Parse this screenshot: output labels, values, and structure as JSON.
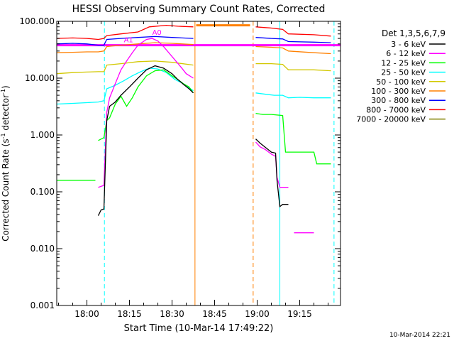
{
  "chart_data": {
    "type": "line",
    "title": "HESSI Observing Summary Count Rates, Corrected",
    "xlabel": "Start Time (10-Mar-14 17:49:22)",
    "ylabel": "Corrected Count Rate (s⁻¹ detector⁻¹)",
    "ylabel_main": "Corrected Count Rate (s",
    "ylabel_sup1": "-1",
    "ylabel_mid": " detector",
    "ylabel_sup2": "-1",
    "ylabel_end": ")",
    "yscale": "log",
    "xlim": [
      "17:49:22",
      "19:29:22"
    ],
    "ylim": [
      0.001,
      100
    ],
    "x_ticks": [
      "18:00",
      "18:15",
      "18:30",
      "18:45",
      "19:00",
      "19:15"
    ],
    "y_ticks": [
      "0.001",
      "0.010",
      "0.100",
      "1.000",
      "10.000",
      "100.000"
    ],
    "legend_title": "Det 1,3,5,6,7,9",
    "legend_placement": "right-outside",
    "footer_timestamp": "10-Mar-2014 22:21",
    "annotations": [
      {
        "text": "A1",
        "time": "18:14:40",
        "value": 43
      },
      {
        "text": "A0",
        "time": "18:24:40",
        "value": 58
      }
    ],
    "vertical_lines": [
      {
        "time": "17:49:22",
        "color": "#00ffff",
        "style": "dashed"
      },
      {
        "time": "18:06:10",
        "color": "#00ffff",
        "style": "dashed"
      },
      {
        "time": "18:38:05",
        "color": "#ff8000",
        "style": "solid"
      },
      {
        "time": "18:58:35",
        "color": "#ff8000",
        "style": "dashed"
      },
      {
        "time": "19:08:00",
        "color": "#00ffff",
        "style": "solid"
      },
      {
        "time": "19:27:05",
        "color": "#00ffff",
        "style": "dashed"
      }
    ],
    "horizontal_lines": [
      {
        "value": 38,
        "color": "#ff00ff",
        "from": "17:49:22",
        "to": "19:29:22"
      },
      {
        "value": 85,
        "color": "#ff8000",
        "from": "18:38:30",
        "to": "18:57:30"
      }
    ],
    "series": [
      {
        "name": "3 - 6 keV",
        "color": "#000000",
        "points": [
          [
            "18:04:00",
            0.038
          ],
          [
            "18:05:00",
            0.048
          ],
          [
            "18:06:00",
            0.05
          ],
          [
            "18:07:00",
            1.8
          ],
          [
            "18:08:00",
            3.2
          ],
          [
            "18:10:00",
            3.8
          ],
          [
            "18:12:00",
            5.0
          ],
          [
            "18:15:00",
            7.0
          ],
          [
            "18:18:00",
            10.0
          ],
          [
            "18:21:00",
            14.0
          ],
          [
            "18:24:00",
            16.5
          ],
          [
            "18:27:00",
            15.0
          ],
          [
            "18:30:00",
            12.0
          ],
          [
            "18:32:00",
            9.5
          ],
          [
            "18:34:00",
            7.8
          ],
          [
            "18:36:00",
            6.5
          ],
          [
            "18:37:30",
            5.5
          ],
          null,
          [
            "18:59:30",
            0.85
          ],
          [
            "19:01:00",
            0.72
          ],
          [
            "19:03:00",
            0.6
          ],
          [
            "19:05:00",
            0.5
          ],
          [
            "19:06:30",
            0.48
          ],
          [
            "19:07:00",
            0.16
          ],
          [
            "19:08:00",
            0.055
          ],
          [
            "19:09:00",
            0.06
          ],
          [
            "19:11:00",
            0.06
          ]
        ]
      },
      {
        "name": "6 - 12 keV",
        "color": "#ff00ff",
        "points": [
          [
            "18:04:00",
            0.12
          ],
          [
            "18:06:00",
            0.13
          ],
          [
            "18:07:00",
            2.5
          ],
          [
            "18:08:00",
            4.5
          ],
          [
            "18:10:00",
            8.0
          ],
          [
            "18:12:00",
            14.0
          ],
          [
            "18:14:00",
            20.0
          ],
          [
            "18:16:00",
            28.0
          ],
          [
            "18:18:00",
            38.0
          ],
          [
            "18:21:00",
            48.0
          ],
          [
            "18:23:00",
            50.0
          ],
          [
            "18:25:00",
            45.0
          ],
          [
            "18:27:00",
            36.0
          ],
          [
            "18:30:00",
            24.0
          ],
          [
            "18:33:00",
            16.0
          ],
          [
            "18:35:00",
            12.0
          ],
          [
            "18:37:30",
            10.0
          ],
          null,
          [
            "18:59:30",
            0.75
          ],
          [
            "19:01:00",
            0.62
          ],
          [
            "19:03:00",
            0.55
          ],
          [
            "19:05:00",
            0.46
          ],
          [
            "19:06:30",
            0.42
          ],
          [
            "19:07:00",
            0.18
          ],
          [
            "19:08:00",
            0.12
          ],
          [
            "19:11:00",
            0.12
          ],
          null,
          [
            "19:13:00",
            0.019
          ],
          [
            "19:20:00",
            0.019
          ]
        ]
      },
      {
        "name": "12 - 25 keV",
        "color": "#00ff00",
        "points": [
          [
            "17:49:22",
            0.16
          ],
          [
            "17:50:00",
            0.16
          ],
          [
            "18:03:00",
            0.16
          ],
          null,
          [
            "18:04:00",
            0.8
          ],
          [
            "18:06:00",
            0.9
          ],
          [
            "18:07:00",
            1.8
          ],
          [
            "18:08:00",
            2.0
          ],
          [
            "18:10:00",
            3.5
          ],
          [
            "18:12:00",
            4.8
          ],
          [
            "18:14:00",
            3.2
          ],
          [
            "18:16:00",
            4.5
          ],
          [
            "18:18:00",
            7.0
          ],
          [
            "18:21:00",
            11.0
          ],
          [
            "18:24:00",
            13.5
          ],
          [
            "18:27:00",
            14.0
          ],
          [
            "18:30:00",
            11.0
          ],
          [
            "18:32:00",
            9.5
          ],
          [
            "18:34:00",
            8.0
          ],
          [
            "18:36:00",
            7.0
          ],
          [
            "18:37:30",
            5.5
          ],
          null,
          [
            "18:59:30",
            2.4
          ],
          [
            "19:02:00",
            2.3
          ],
          [
            "19:05:00",
            2.3
          ],
          [
            "19:09:00",
            2.2
          ],
          [
            "19:10:00",
            0.5
          ],
          [
            "19:13:00",
            0.5
          ],
          [
            "19:16:00",
            0.5
          ],
          [
            "19:20:00",
            0.5
          ],
          [
            "19:21:00",
            0.31
          ],
          [
            "19:26:00",
            0.31
          ]
        ]
      },
      {
        "name": "25 - 50 keV",
        "color": "#00ffff",
        "points": [
          [
            "17:49:22",
            3.5
          ],
          [
            "17:55:00",
            3.6
          ],
          [
            "18:00:00",
            3.7
          ],
          [
            "18:04:00",
            3.8
          ],
          [
            "18:06:00",
            4.0
          ],
          [
            "18:07:00",
            6.5
          ],
          [
            "18:10:00",
            7.5
          ],
          [
            "18:13:00",
            9.0
          ],
          [
            "18:16:00",
            11.0
          ],
          [
            "18:19:00",
            13.0
          ],
          [
            "18:22:00",
            15.0
          ],
          [
            "18:25:00",
            14.5
          ],
          [
            "18:28:00",
            12.5
          ],
          [
            "18:31:00",
            9.5
          ],
          [
            "18:34:00",
            8.0
          ],
          [
            "18:37:30",
            6.0
          ],
          null,
          [
            "18:59:30",
            5.5
          ],
          [
            "19:03:00",
            5.2
          ],
          [
            "19:06:00",
            5.0
          ],
          [
            "19:09:00",
            5.0
          ],
          [
            "19:11:00",
            4.5
          ],
          [
            "19:15:00",
            4.6
          ],
          [
            "19:20:00",
            4.5
          ],
          [
            "19:26:00",
            4.5
          ]
        ]
      },
      {
        "name": "50 - 100 keV",
        "color": "#d2c800",
        "points": [
          [
            "17:49:22",
            12.0
          ],
          [
            "17:55:00",
            12.5
          ],
          [
            "18:00:00",
            12.8
          ],
          [
            "18:04:00",
            13.0
          ],
          [
            "18:06:00",
            13.0
          ],
          [
            "18:07:00",
            17.0
          ],
          [
            "18:12:00",
            18.0
          ],
          [
            "18:18:00",
            19.5
          ],
          [
            "18:24:00",
            20.0
          ],
          [
            "18:30:00",
            19.0
          ],
          [
            "18:37:30",
            17.0
          ],
          null,
          [
            "18:59:30",
            18.0
          ],
          [
            "19:05:00",
            18.0
          ],
          [
            "19:09:00",
            17.5
          ],
          [
            "19:11:00",
            14.0
          ],
          [
            "19:20:00",
            14.0
          ],
          [
            "19:26:00",
            13.5
          ]
        ]
      },
      {
        "name": "100 - 300 keV",
        "color": "#ff8000",
        "points": [
          [
            "17:49:22",
            28.0
          ],
          [
            "17:55:00",
            28.5
          ],
          [
            "18:00:00",
            29.0
          ],
          [
            "18:04:00",
            29.0
          ],
          [
            "18:06:00",
            30.0
          ],
          [
            "18:07:00",
            36.0
          ],
          [
            "18:12:00",
            38.0
          ],
          [
            "18:18:00",
            40.0
          ],
          [
            "18:24:00",
            42.0
          ],
          [
            "18:30:00",
            41.0
          ],
          [
            "18:37:30",
            39.0
          ],
          null,
          [
            "18:59:30",
            36.0
          ],
          [
            "19:05:00",
            35.0
          ],
          [
            "19:09:00",
            34.0
          ],
          [
            "19:11:00",
            30.0
          ],
          [
            "19:20:00",
            28.0
          ],
          [
            "19:26:00",
            27.0
          ]
        ]
      },
      {
        "name": "300 - 800 keV",
        "color": "#0000ff",
        "points": [
          [
            "17:49:22",
            40.0
          ],
          [
            "17:55:00",
            41.0
          ],
          [
            "18:00:00",
            40.0
          ],
          [
            "18:04:00",
            38.0
          ],
          [
            "18:06:00",
            38.0
          ],
          [
            "18:07:00",
            48.0
          ],
          [
            "18:12:00",
            50.0
          ],
          [
            "18:18:00",
            52.0
          ],
          [
            "18:24:00",
            54.0
          ],
          [
            "18:30:00",
            52.0
          ],
          [
            "18:37:30",
            50.0
          ],
          null,
          [
            "18:59:30",
            52.0
          ],
          [
            "19:05:00",
            50.0
          ],
          [
            "19:09:00",
            49.0
          ],
          [
            "19:11:00",
            44.0
          ],
          [
            "19:20:00",
            43.0
          ],
          [
            "19:26:00",
            42.0
          ]
        ]
      },
      {
        "name": "800 - 7000 keV",
        "color": "#ff0000",
        "points": [
          [
            "17:49:22",
            50.0
          ],
          [
            "17:55:00",
            51.0
          ],
          [
            "18:00:00",
            50.0
          ],
          [
            "18:04:00",
            48.0
          ],
          [
            "18:06:00",
            50.0
          ],
          [
            "18:07:00",
            56.0
          ],
          [
            "18:12:00",
            60.0
          ],
          [
            "18:18:00",
            65.0
          ],
          [
            "18:22:00",
            80.0
          ],
          [
            "18:28:00",
            85.0
          ],
          [
            "18:32:00",
            82.0
          ],
          [
            "18:37:30",
            80.0
          ],
          null,
          [
            "18:59:30",
            80.0
          ],
          [
            "19:05:00",
            76.0
          ],
          [
            "19:09:00",
            72.0
          ],
          [
            "19:11:00",
            60.0
          ],
          [
            "19:20:00",
            58.0
          ],
          [
            "19:26:00",
            55.0
          ]
        ]
      },
      {
        "name": "7000 - 20000 keV",
        "color": "#808000",
        "points": []
      }
    ]
  }
}
